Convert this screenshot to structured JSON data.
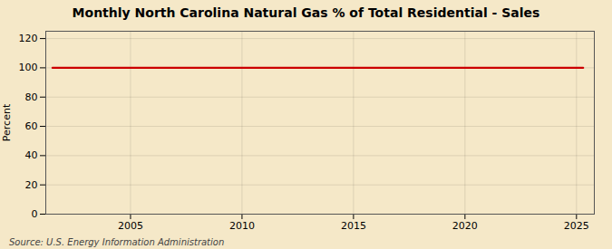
{
  "chart_data": {
    "type": "line",
    "title": "Monthly North Carolina Natural Gas % of Total Residential - Sales",
    "ylabel": "Percent",
    "source": "Source: U.S. Energy Information Administration",
    "x": [
      2001.5,
      2025.3
    ],
    "values": [
      100,
      100
    ],
    "color": "#cc0000",
    "xlim": [
      2001.2,
      2025.8
    ],
    "xticks": [
      2005,
      2010,
      2015,
      2020,
      2025
    ],
    "ylim": [
      0,
      125
    ],
    "yticks": [
      0,
      20,
      40,
      60,
      80,
      100,
      120
    ],
    "grid": true
  }
}
